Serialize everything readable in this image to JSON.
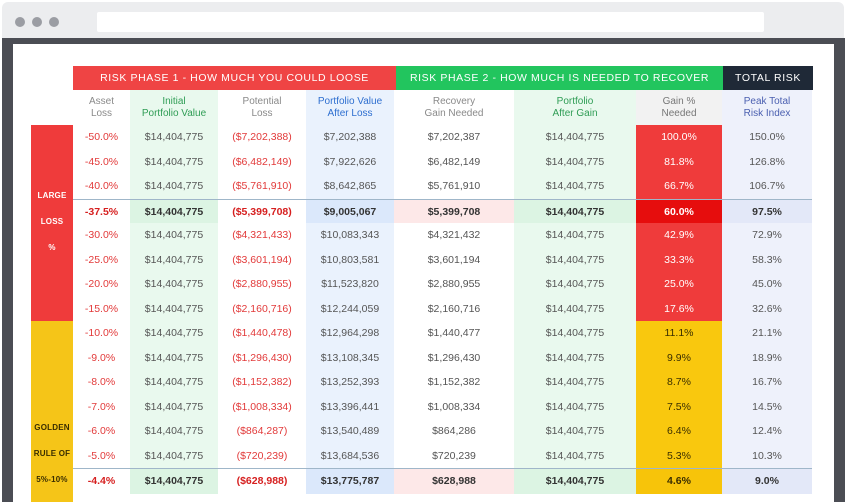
{
  "phases": {
    "phase1": "RISK PHASE 1 - HOW MUCH YOU COULD LOOSE",
    "phase2": "RISK PHASE 2 - HOW MUCH IS NEEDED TO RECOVER",
    "total": "TOTAL RISK"
  },
  "columns": [
    {
      "l1": "Asset",
      "l2": "Loss"
    },
    {
      "l1": "Initial",
      "l2": "Portfolio Value"
    },
    {
      "l1": "Potential",
      "l2": "Loss"
    },
    {
      "l1": "Portfolio Value",
      "l2": "After Loss"
    },
    {
      "l1": "Recovery",
      "l2": "Gain Needed"
    },
    {
      "l1": "Portfolio",
      "l2": "After Gain"
    },
    {
      "l1": "Gain %",
      "l2": "Needed"
    },
    {
      "l1": "Peak Total",
      "l2": "Risk Index"
    }
  ],
  "side_labels": {
    "large": "LARGE",
    "loss": "LOSS",
    "pct": "%",
    "golden": "GOLDEN",
    "rule_of": "RULE OF",
    "range": "5%-10%"
  },
  "rows": [
    {
      "asset_loss": "-50.0%",
      "initial": "$14,404,775",
      "potential_loss": "($7,202,388)",
      "after_loss": "$7,202,388",
      "recovery": "$7,202,387",
      "after_gain": "$14,404,775",
      "gain_needed": "100.0%",
      "risk_index": "150.0%"
    },
    {
      "asset_loss": "-45.0%",
      "initial": "$14,404,775",
      "potential_loss": "($6,482,149)",
      "after_loss": "$7,922,626",
      "recovery": "$6,482,149",
      "after_gain": "$14,404,775",
      "gain_needed": "81.8%",
      "risk_index": "126.8%"
    },
    {
      "asset_loss": "-40.0%",
      "initial": "$14,404,775",
      "potential_loss": "($5,761,910)",
      "after_loss": "$8,642,865",
      "recovery": "$5,761,910",
      "after_gain": "$14,404,775",
      "gain_needed": "66.7%",
      "risk_index": "106.7%"
    },
    {
      "asset_loss": "-37.5%",
      "initial": "$14,404,775",
      "potential_loss": "($5,399,708)",
      "after_loss": "$9,005,067",
      "recovery": "$5,399,708",
      "after_gain": "$14,404,775",
      "gain_needed": "60.0%",
      "risk_index": "97.5%",
      "highlight": true
    },
    {
      "asset_loss": "-30.0%",
      "initial": "$14,404,775",
      "potential_loss": "($4,321,433)",
      "after_loss": "$10,083,343",
      "recovery": "$4,321,432",
      "after_gain": "$14,404,775",
      "gain_needed": "42.9%",
      "risk_index": "72.9%"
    },
    {
      "asset_loss": "-25.0%",
      "initial": "$14,404,775",
      "potential_loss": "($3,601,194)",
      "after_loss": "$10,803,581",
      "recovery": "$3,601,194",
      "after_gain": "$14,404,775",
      "gain_needed": "33.3%",
      "risk_index": "58.3%"
    },
    {
      "asset_loss": "-20.0%",
      "initial": "$14,404,775",
      "potential_loss": "($2,880,955)",
      "after_loss": "$11,523,820",
      "recovery": "$2,880,955",
      "after_gain": "$14,404,775",
      "gain_needed": "25.0%",
      "risk_index": "45.0%"
    },
    {
      "asset_loss": "-15.0%",
      "initial": "$14,404,775",
      "potential_loss": "($2,160,716)",
      "after_loss": "$12,244,059",
      "recovery": "$2,160,716",
      "after_gain": "$14,404,775",
      "gain_needed": "17.6%",
      "risk_index": "32.6%"
    },
    {
      "asset_loss": "-10.0%",
      "initial": "$14,404,775",
      "potential_loss": "($1,440,478)",
      "after_loss": "$12,964,298",
      "recovery": "$1,440,477",
      "after_gain": "$14,404,775",
      "gain_needed": "11.1%",
      "risk_index": "21.1%"
    },
    {
      "asset_loss": "-9.0%",
      "initial": "$14,404,775",
      "potential_loss": "($1,296,430)",
      "after_loss": "$13,108,345",
      "recovery": "$1,296,430",
      "after_gain": "$14,404,775",
      "gain_needed": "9.9%",
      "risk_index": "18.9%"
    },
    {
      "asset_loss": "-8.0%",
      "initial": "$14,404,775",
      "potential_loss": "($1,152,382)",
      "after_loss": "$13,252,393",
      "recovery": "$1,152,382",
      "after_gain": "$14,404,775",
      "gain_needed": "8.7%",
      "risk_index": "16.7%"
    },
    {
      "asset_loss": "-7.0%",
      "initial": "$14,404,775",
      "potential_loss": "($1,008,334)",
      "after_loss": "$13,396,441",
      "recovery": "$1,008,334",
      "after_gain": "$14,404,775",
      "gain_needed": "7.5%",
      "risk_index": "14.5%"
    },
    {
      "asset_loss": "-6.0%",
      "initial": "$14,404,775",
      "potential_loss": "($864,287)",
      "after_loss": "$13,540,489",
      "recovery": "$864,286",
      "after_gain": "$14,404,775",
      "gain_needed": "6.4%",
      "risk_index": "12.4%"
    },
    {
      "asset_loss": "-5.0%",
      "initial": "$14,404,775",
      "potential_loss": "($720,239)",
      "after_loss": "$13,684,536",
      "recovery": "$720,239",
      "after_gain": "$14,404,775",
      "gain_needed": "5.3%",
      "risk_index": "10.3%"
    },
    {
      "asset_loss": "-4.4%",
      "initial": "$14,404,775",
      "potential_loss": "($628,988)",
      "after_loss": "$13,775,787",
      "recovery": "$628,988",
      "after_gain": "$14,404,775",
      "gain_needed": "4.6%",
      "risk_index": "9.0%",
      "highlight": true
    }
  ],
  "colors": {
    "phase1": "#ef4444",
    "phase2": "#22c55e",
    "total": "#1f2937",
    "loss_zone": "#ef3b3b",
    "golden_zone": "#f5c518",
    "gain_red": "#ef3b3b",
    "gain_yellow": "#f9c80e",
    "initial_col": "#e9f9ee",
    "after_loss_col": "#eaf2fd",
    "after_gain_col": "#ebf4fd",
    "risk_col": "#eef1fb"
  }
}
